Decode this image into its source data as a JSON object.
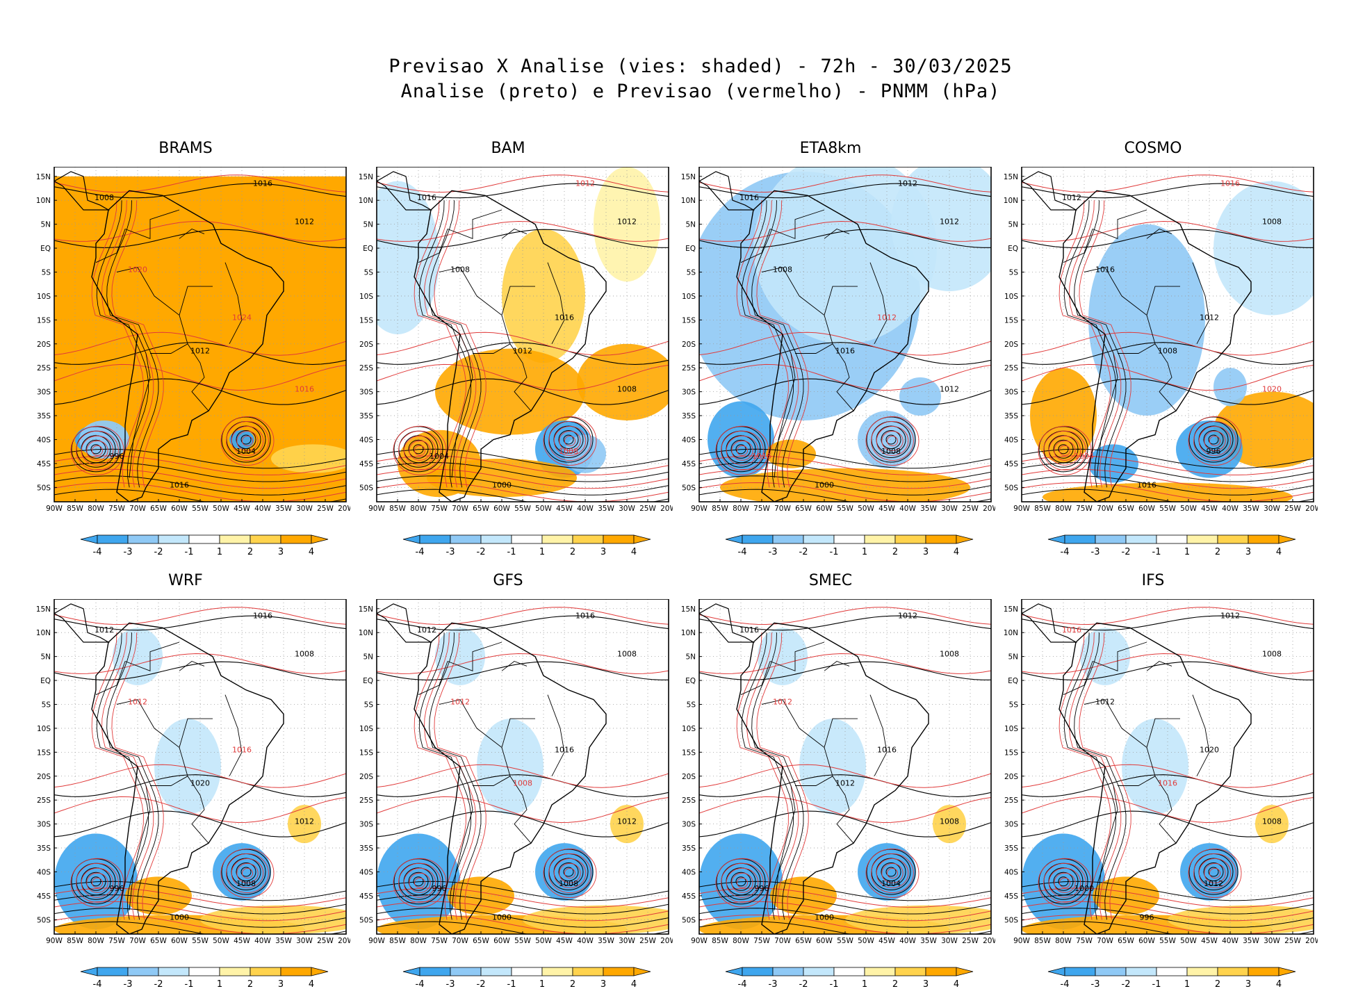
{
  "title": {
    "line1": "Previsao X Analise (vies: shaded) - 72h - 30/03/2025",
    "line2": "Analise (preto) e Previsao (vermelho) - PNMM (hPa)"
  },
  "axes": {
    "lat_labels": [
      "15N",
      "10N",
      "5N",
      "EQ",
      "5S",
      "10S",
      "15S",
      "20S",
      "25S",
      "30S",
      "35S",
      "40S",
      "45S",
      "50S"
    ],
    "lon_labels": [
      "90W",
      "85W",
      "80W",
      "75W",
      "70W",
      "65W",
      "60W",
      "55W",
      "50W",
      "45W",
      "40W",
      "35W",
      "30W",
      "25W",
      "20W"
    ]
  },
  "colorbar": {
    "ticks": [
      "-4",
      "-3",
      "-2",
      "-1",
      "1",
      "2",
      "3",
      "4"
    ],
    "colors": [
      "#3fa6ee",
      "#8fc9f5",
      "#c3e7fb",
      "#ffffff",
      "#fff3a8",
      "#ffd34d",
      "#ffa800"
    ]
  },
  "line_colors": {
    "analysis": "#000000",
    "forecast": "#e03a3a"
  },
  "panels": [
    {
      "id": "brams",
      "name": "BRAMS",
      "bias": "warm",
      "labels": [
        {
          "t": "1016",
          "c": "a"
        },
        {
          "t": "1008",
          "c": "a"
        },
        {
          "t": "1012",
          "c": "a"
        },
        {
          "t": "1020",
          "c": "f"
        },
        {
          "t": "1024",
          "c": "f"
        },
        {
          "t": "1012",
          "c": "a"
        },
        {
          "t": "1016",
          "c": "f"
        },
        {
          "t": "1004",
          "c": "a"
        },
        {
          "t": "996",
          "c": "a"
        },
        {
          "t": "1016",
          "c": "a"
        }
      ]
    },
    {
      "id": "bam",
      "name": "BAM",
      "bias": "mixed",
      "labels": [
        {
          "t": "1012",
          "c": "f"
        },
        {
          "t": "1016",
          "c": "a"
        },
        {
          "t": "1012",
          "c": "a"
        },
        {
          "t": "1008",
          "c": "a"
        },
        {
          "t": "1016",
          "c": "a"
        },
        {
          "t": "1012",
          "c": "a"
        },
        {
          "t": "1008",
          "c": "a"
        },
        {
          "t": "1008",
          "c": "f"
        },
        {
          "t": "1004",
          "c": "a"
        },
        {
          "t": "1000",
          "c": "a"
        }
      ]
    },
    {
      "id": "eta8km",
      "name": "ETA8km",
      "bias": "cold",
      "labels": [
        {
          "t": "1012",
          "c": "a"
        },
        {
          "t": "1016",
          "c": "a"
        },
        {
          "t": "1012",
          "c": "a"
        },
        {
          "t": "1008",
          "c": "a"
        },
        {
          "t": "1012",
          "c": "f"
        },
        {
          "t": "1016",
          "c": "a"
        },
        {
          "t": "1012",
          "c": "a"
        },
        {
          "t": "1008",
          "c": "a"
        },
        {
          "t": "1016",
          "c": "f"
        },
        {
          "t": "1000",
          "c": "a"
        }
      ]
    },
    {
      "id": "cosmo",
      "name": "COSMO",
      "bias": "mixed2",
      "labels": [
        {
          "t": "1016",
          "c": "f"
        },
        {
          "t": "1012",
          "c": "a"
        },
        {
          "t": "1008",
          "c": "a"
        },
        {
          "t": "1016",
          "c": "a"
        },
        {
          "t": "1012",
          "c": "a"
        },
        {
          "t": "1008",
          "c": "a"
        },
        {
          "t": "1020",
          "c": "f"
        },
        {
          "t": "996",
          "c": "a"
        },
        {
          "t": "1004",
          "c": "f"
        },
        {
          "t": "1016",
          "c": "a"
        }
      ]
    },
    {
      "id": "wrf",
      "name": "WRF",
      "bias": "weak",
      "labels": [
        {
          "t": "1016",
          "c": "a"
        },
        {
          "t": "1012",
          "c": "a"
        },
        {
          "t": "1008",
          "c": "a"
        },
        {
          "t": "1012",
          "c": "f"
        },
        {
          "t": "1016",
          "c": "f"
        },
        {
          "t": "1020",
          "c": "a"
        },
        {
          "t": "1012",
          "c": "a"
        },
        {
          "t": "1008",
          "c": "a"
        },
        {
          "t": "996",
          "c": "a"
        },
        {
          "t": "1000",
          "c": "a"
        }
      ]
    },
    {
      "id": "gfs",
      "name": "GFS",
      "bias": "weak",
      "labels": [
        {
          "t": "1016",
          "c": "a"
        },
        {
          "t": "1012",
          "c": "a"
        },
        {
          "t": "1008",
          "c": "a"
        },
        {
          "t": "1012",
          "c": "f"
        },
        {
          "t": "1016",
          "c": "a"
        },
        {
          "t": "1008",
          "c": "f"
        },
        {
          "t": "1012",
          "c": "a"
        },
        {
          "t": "1008",
          "c": "a"
        },
        {
          "t": "996",
          "c": "a"
        },
        {
          "t": "1000",
          "c": "a"
        }
      ]
    },
    {
      "id": "smec",
      "name": "SMEC",
      "bias": "weak",
      "labels": [
        {
          "t": "1012",
          "c": "a"
        },
        {
          "t": "1016",
          "c": "a"
        },
        {
          "t": "1008",
          "c": "a"
        },
        {
          "t": "1012",
          "c": "f"
        },
        {
          "t": "1016",
          "c": "a"
        },
        {
          "t": "1012",
          "c": "a"
        },
        {
          "t": "1008",
          "c": "a"
        },
        {
          "t": "1004",
          "c": "a"
        },
        {
          "t": "996",
          "c": "a"
        },
        {
          "t": "1000",
          "c": "a"
        }
      ]
    },
    {
      "id": "ifs",
      "name": "IFS",
      "bias": "weak",
      "labels": [
        {
          "t": "1012",
          "c": "a"
        },
        {
          "t": "1016",
          "c": "f"
        },
        {
          "t": "1008",
          "c": "a"
        },
        {
          "t": "1012",
          "c": "a"
        },
        {
          "t": "1020",
          "c": "a"
        },
        {
          "t": "1016",
          "c": "f"
        },
        {
          "t": "1008",
          "c": "a"
        },
        {
          "t": "1012",
          "c": "a"
        },
        {
          "t": "1000",
          "c": "a"
        },
        {
          "t": "996",
          "c": "a"
        }
      ]
    }
  ]
}
